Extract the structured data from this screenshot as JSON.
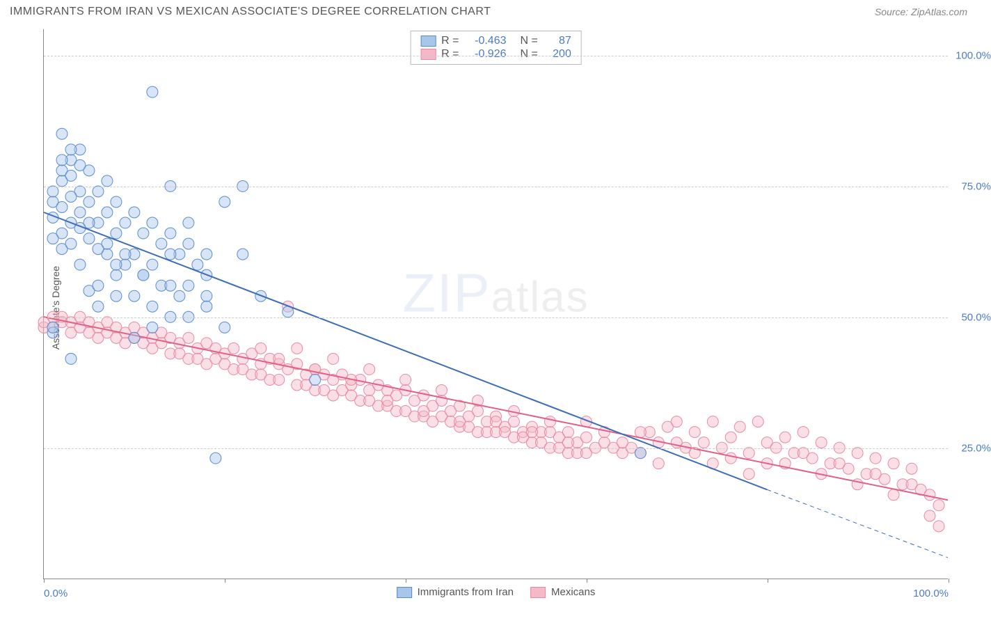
{
  "title": "IMMIGRANTS FROM IRAN VS MEXICAN ASSOCIATE'S DEGREE CORRELATION CHART",
  "source": "Source: ZipAtlas.com",
  "ylabel": "Associate's Degree",
  "watermark_main": "ZIP",
  "watermark_rest": "atlas",
  "chart": {
    "type": "scatter",
    "xlim": [
      0,
      100
    ],
    "ylim": [
      0,
      105
    ],
    "yticks": [
      25,
      50,
      75,
      100
    ],
    "ytick_labels": [
      "25.0%",
      "50.0%",
      "75.0%",
      "100.0%"
    ],
    "xticks": [
      0,
      20,
      40,
      60,
      80,
      100
    ],
    "xtick_labels_shown": {
      "0": "0.0%",
      "100": "100.0%"
    },
    "background_color": "#ffffff",
    "grid_color": "#cccccc",
    "axis_color": "#888888",
    "tick_label_color": "#4a7bc8",
    "marker_radius": 8,
    "marker_opacity": 0.45,
    "line_width": 2
  },
  "series": [
    {
      "name": "Immigrants from Iran",
      "label": "Immigrants from Iran",
      "color_fill": "#a8c5ea",
      "color_stroke": "#5a8bd0",
      "line_color": "#3d6db5",
      "R": "-0.463",
      "N": "87",
      "regression": {
        "x1": 0,
        "y1": 70,
        "x2": 80,
        "y2": 17
      },
      "regression_dash_ext": {
        "x1": 80,
        "y1": 17,
        "x2": 100,
        "y2": 4
      },
      "points": [
        [
          1,
          69
        ],
        [
          1,
          72
        ],
        [
          1,
          74
        ],
        [
          2,
          76
        ],
        [
          2,
          78
        ],
        [
          2,
          66
        ],
        [
          2,
          63
        ],
        [
          2,
          71
        ],
        [
          1,
          47
        ],
        [
          1,
          48
        ],
        [
          3,
          80
        ],
        [
          3,
          77
        ],
        [
          3,
          68
        ],
        [
          3,
          64
        ],
        [
          4,
          82
        ],
        [
          4,
          74
        ],
        [
          4,
          70
        ],
        [
          5,
          78
        ],
        [
          5,
          72
        ],
        [
          5,
          65
        ],
        [
          6,
          74
        ],
        [
          6,
          68
        ],
        [
          7,
          76
        ],
        [
          7,
          70
        ],
        [
          7,
          62
        ],
        [
          8,
          72
        ],
        [
          8,
          66
        ],
        [
          9,
          68
        ],
        [
          9,
          60
        ],
        [
          10,
          70
        ],
        [
          10,
          62
        ],
        [
          11,
          66
        ],
        [
          11,
          58
        ],
        [
          12,
          68
        ],
        [
          12,
          60
        ],
        [
          13,
          64
        ],
        [
          13,
          56
        ],
        [
          14,
          66
        ],
        [
          15,
          62
        ],
        [
          15,
          54
        ],
        [
          16,
          64
        ],
        [
          16,
          56
        ],
        [
          17,
          60
        ],
        [
          18,
          62
        ],
        [
          18,
          54
        ],
        [
          12,
          93
        ],
        [
          14,
          75
        ],
        [
          22,
          75
        ],
        [
          3,
          42
        ],
        [
          5,
          55
        ],
        [
          6,
          52
        ],
        [
          8,
          58
        ],
        [
          10,
          54
        ],
        [
          12,
          52
        ],
        [
          14,
          56
        ],
        [
          16,
          50
        ],
        [
          18,
          52
        ],
        [
          20,
          48
        ],
        [
          5,
          68
        ],
        [
          7,
          64
        ],
        [
          9,
          62
        ],
        [
          11,
          58
        ],
        [
          4,
          60
        ],
        [
          6,
          56
        ],
        [
          8,
          54
        ],
        [
          12,
          48
        ],
        [
          14,
          50
        ],
        [
          18,
          58
        ],
        [
          24,
          54
        ],
        [
          20,
          72
        ],
        [
          22,
          62
        ],
        [
          10,
          46
        ],
        [
          19,
          23
        ],
        [
          2,
          80
        ],
        [
          3,
          73
        ],
        [
          4,
          67
        ],
        [
          6,
          63
        ],
        [
          8,
          60
        ],
        [
          2,
          85
        ],
        [
          3,
          82
        ],
        [
          4,
          79
        ],
        [
          1,
          65
        ],
        [
          16,
          68
        ],
        [
          14,
          62
        ],
        [
          27,
          51
        ],
        [
          30,
          38
        ],
        [
          66,
          24
        ]
      ]
    },
    {
      "name": "Mexicans",
      "label": "Mexicans",
      "color_fill": "#f5b8c8",
      "color_stroke": "#e88aa5",
      "line_color": "#e06088",
      "R": "-0.926",
      "N": "200",
      "regression": {
        "x1": 0,
        "y1": 50,
        "x2": 100,
        "y2": 15
      },
      "points": [
        [
          0,
          48
        ],
        [
          0,
          49
        ],
        [
          1,
          50
        ],
        [
          1,
          48
        ],
        [
          2,
          50
        ],
        [
          2,
          49
        ],
        [
          3,
          49
        ],
        [
          3,
          47
        ],
        [
          4,
          50
        ],
        [
          4,
          48
        ],
        [
          5,
          49
        ],
        [
          5,
          47
        ],
        [
          6,
          48
        ],
        [
          6,
          46
        ],
        [
          7,
          49
        ],
        [
          7,
          47
        ],
        [
          8,
          48
        ],
        [
          8,
          46
        ],
        [
          9,
          47
        ],
        [
          9,
          45
        ],
        [
          10,
          48
        ],
        [
          10,
          46
        ],
        [
          11,
          47
        ],
        [
          11,
          45
        ],
        [
          12,
          46
        ],
        [
          12,
          44
        ],
        [
          13,
          47
        ],
        [
          13,
          45
        ],
        [
          14,
          46
        ],
        [
          14,
          43
        ],
        [
          15,
          45
        ],
        [
          15,
          43
        ],
        [
          16,
          46
        ],
        [
          16,
          42
        ],
        [
          17,
          44
        ],
        [
          17,
          42
        ],
        [
          18,
          45
        ],
        [
          18,
          41
        ],
        [
          19,
          44
        ],
        [
          19,
          42
        ],
        [
          20,
          43
        ],
        [
          20,
          41
        ],
        [
          21,
          44
        ],
        [
          21,
          40
        ],
        [
          22,
          42
        ],
        [
          22,
          40
        ],
        [
          23,
          43
        ],
        [
          23,
          39
        ],
        [
          24,
          41
        ],
        [
          24,
          39
        ],
        [
          25,
          42
        ],
        [
          25,
          38
        ],
        [
          26,
          41
        ],
        [
          26,
          38
        ],
        [
          27,
          40
        ],
        [
          27,
          52
        ],
        [
          28,
          41
        ],
        [
          28,
          37
        ],
        [
          29,
          39
        ],
        [
          29,
          37
        ],
        [
          30,
          40
        ],
        [
          30,
          36
        ],
        [
          31,
          39
        ],
        [
          31,
          36
        ],
        [
          32,
          38
        ],
        [
          32,
          35
        ],
        [
          33,
          39
        ],
        [
          33,
          36
        ],
        [
          34,
          37
        ],
        [
          34,
          35
        ],
        [
          35,
          38
        ],
        [
          35,
          34
        ],
        [
          36,
          36
        ],
        [
          36,
          34
        ],
        [
          37,
          37
        ],
        [
          37,
          33
        ],
        [
          38,
          36
        ],
        [
          38,
          33
        ],
        [
          39,
          35
        ],
        [
          39,
          32
        ],
        [
          40,
          36
        ],
        [
          40,
          32
        ],
        [
          41,
          34
        ],
        [
          41,
          31
        ],
        [
          42,
          35
        ],
        [
          42,
          31
        ],
        [
          43,
          33
        ],
        [
          43,
          30
        ],
        [
          44,
          34
        ],
        [
          44,
          31
        ],
        [
          45,
          32
        ],
        [
          45,
          30
        ],
        [
          46,
          33
        ],
        [
          46,
          29
        ],
        [
          47,
          31
        ],
        [
          47,
          29
        ],
        [
          48,
          32
        ],
        [
          48,
          28
        ],
        [
          49,
          30
        ],
        [
          49,
          28
        ],
        [
          50,
          31
        ],
        [
          50,
          28
        ],
        [
          51,
          29
        ],
        [
          51,
          28
        ],
        [
          52,
          30
        ],
        [
          52,
          27
        ],
        [
          53,
          28
        ],
        [
          53,
          27
        ],
        [
          54,
          29
        ],
        [
          54,
          26
        ],
        [
          55,
          28
        ],
        [
          55,
          26
        ],
        [
          56,
          28
        ],
        [
          56,
          25
        ],
        [
          57,
          27
        ],
        [
          57,
          25
        ],
        [
          58,
          28
        ],
        [
          58,
          24
        ],
        [
          59,
          26
        ],
        [
          59,
          24
        ],
        [
          60,
          27
        ],
        [
          60,
          24
        ],
        [
          61,
          25
        ],
        [
          62,
          26
        ],
        [
          63,
          25
        ],
        [
          64,
          24
        ],
        [
          65,
          25
        ],
        [
          66,
          24
        ],
        [
          67,
          28
        ],
        [
          68,
          26
        ],
        [
          69,
          29
        ],
        [
          70,
          26
        ],
        [
          71,
          25
        ],
        [
          72,
          28
        ],
        [
          73,
          26
        ],
        [
          74,
          30
        ],
        [
          75,
          25
        ],
        [
          76,
          27
        ],
        [
          77,
          29
        ],
        [
          78,
          24
        ],
        [
          79,
          30
        ],
        [
          80,
          26
        ],
        [
          81,
          25
        ],
        [
          82,
          27
        ],
        [
          83,
          24
        ],
        [
          84,
          28
        ],
        [
          85,
          23
        ],
        [
          86,
          26
        ],
        [
          87,
          22
        ],
        [
          88,
          25
        ],
        [
          89,
          21
        ],
        [
          90,
          24
        ],
        [
          91,
          20
        ],
        [
          92,
          23
        ],
        [
          93,
          19
        ],
        [
          94,
          22
        ],
        [
          95,
          18
        ],
        [
          96,
          21
        ],
        [
          97,
          17
        ],
        [
          98,
          16
        ],
        [
          99,
          14
        ],
        [
          99,
          10
        ],
        [
          98,
          12
        ],
        [
          96,
          18
        ],
        [
          94,
          16
        ],
        [
          92,
          20
        ],
        [
          90,
          18
        ],
        [
          88,
          22
        ],
        [
          86,
          20
        ],
        [
          84,
          24
        ],
        [
          82,
          22
        ],
        [
          80,
          22
        ],
        [
          78,
          20
        ],
        [
          76,
          23
        ],
        [
          74,
          22
        ],
        [
          72,
          24
        ],
        [
          70,
          30
        ],
        [
          68,
          22
        ],
        [
          66,
          28
        ],
        [
          64,
          26
        ],
        [
          62,
          28
        ],
        [
          60,
          30
        ],
        [
          58,
          26
        ],
        [
          56,
          30
        ],
        [
          54,
          28
        ],
        [
          52,
          32
        ],
        [
          50,
          30
        ],
        [
          48,
          34
        ],
        [
          46,
          30
        ],
        [
          44,
          36
        ],
        [
          42,
          32
        ],
        [
          40,
          38
        ],
        [
          38,
          34
        ],
        [
          36,
          40
        ],
        [
          34,
          38
        ],
        [
          32,
          42
        ],
        [
          30,
          40
        ],
        [
          28,
          44
        ],
        [
          26,
          42
        ],
        [
          24,
          44
        ]
      ]
    }
  ],
  "legend_top": {
    "r_label": "R =",
    "n_label": "N ="
  },
  "legend_bottom_labels": [
    "Immigrants from Iran",
    "Mexicans"
  ]
}
